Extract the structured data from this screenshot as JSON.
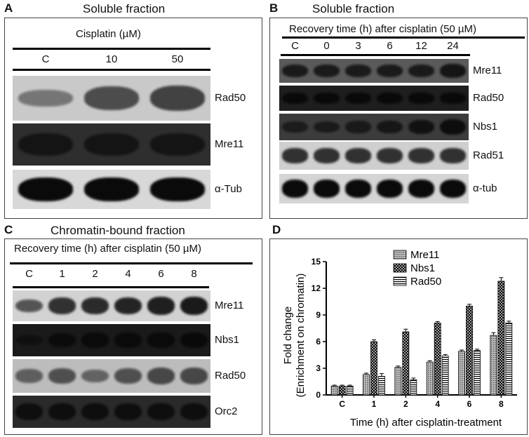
{
  "panelA": {
    "letter": "A",
    "title": "Soluble fraction",
    "treatment": "Cisplatin (µM)",
    "lanes": [
      "C",
      "10",
      "50"
    ],
    "blots": [
      {
        "label": "Rad50",
        "bg": "#c9c9c9",
        "band": "#3a3a3a",
        "intensity": [
          0.35,
          0.8,
          0.9
        ]
      },
      {
        "label": "Mre11",
        "bg": "#2e2e2e",
        "band": "#111111",
        "intensity": [
          0.8,
          0.8,
          0.8
        ]
      },
      {
        "label": "α-Tub",
        "bg": "#d8d8d8",
        "band": "#0a0a0a",
        "intensity": [
          1,
          1,
          1
        ]
      }
    ]
  },
  "panelB": {
    "letter": "B",
    "title": "Soluble fraction",
    "treatment": "Recovery time (h) after cisplatin (50 µM)",
    "lanes": [
      "C",
      "0",
      "3",
      "6",
      "12",
      "24"
    ],
    "blots": [
      {
        "label": "Mre11",
        "bg": "#5a5a5a",
        "band": "#111111",
        "intensity": [
          0.8,
          0.8,
          0.8,
          0.8,
          0.8,
          0.9
        ]
      },
      {
        "label": "Rad50",
        "bg": "#1e1e1e",
        "band": "#000000",
        "intensity": [
          0.5,
          0.5,
          0.5,
          0.5,
          0.5,
          0.5
        ]
      },
      {
        "label": "Nbs1",
        "bg": "#3c3c3c",
        "band": "#0d0d0d",
        "intensity": [
          0.5,
          0.55,
          0.6,
          0.7,
          0.85,
          1
        ]
      },
      {
        "label": "Rad51",
        "bg": "#cfcfcf",
        "band": "#1a1a1a",
        "intensity": [
          0.8,
          0.8,
          0.8,
          0.8,
          0.8,
          0.8
        ]
      },
      {
        "label": "α-tub",
        "bg": "#d5d5d5",
        "band": "#0a0a0a",
        "intensity": [
          1,
          1,
          1,
          1,
          1,
          1
        ]
      }
    ]
  },
  "panelC": {
    "letter": "C",
    "title": "Chromatin-bound fraction",
    "treatment": "Recovery time (h) after cisplatin (50 µM)",
    "lanes": [
      "C",
      "1",
      "2",
      "4",
      "6",
      "8"
    ],
    "blots": [
      {
        "label": "Mre11",
        "bg": "#d2d2d2",
        "band": "#1a1a1a",
        "intensity": [
          0.5,
          0.8,
          0.85,
          0.9,
          0.95,
          1
        ]
      },
      {
        "label": "Nbs1",
        "bg": "#1a1a1a",
        "band": "#050505",
        "intensity": [
          0.2,
          0.5,
          0.6,
          0.6,
          0.6,
          0.65
        ]
      },
      {
        "label": "Rad50",
        "bg": "#bcbcbc",
        "band": "#2a2a2a",
        "intensity": [
          0.45,
          0.6,
          0.4,
          0.6,
          0.7,
          0.7
        ]
      },
      {
        "label": "Orc2",
        "bg": "#2a2a2a",
        "band": "#0a0a0a",
        "intensity": [
          0.8,
          0.8,
          0.8,
          0.8,
          0.8,
          0.8
        ]
      }
    ]
  },
  "panelD": {
    "letter": "D",
    "chart_data": {
      "type": "bar",
      "categories": [
        "C",
        "1",
        "2",
        "4",
        "6",
        "8"
      ],
      "series": [
        {
          "name": "Mre11",
          "values": [
            1.0,
            2.3,
            3.1,
            3.7,
            4.9,
            6.7
          ],
          "errors": [
            0.1,
            0.15,
            0.15,
            0.15,
            0.15,
            0.3
          ],
          "fill": "#9a9a9a"
        },
        {
          "name": "Nbs1",
          "values": [
            1.0,
            6.0,
            7.1,
            8.1,
            10.0,
            12.8
          ],
          "errors": [
            0.1,
            0.2,
            0.3,
            0.15,
            0.2,
            0.4
          ],
          "fill": "#3a3a3a"
        },
        {
          "name": "Rad50",
          "values": [
            1.0,
            2.1,
            1.7,
            4.4,
            5.0,
            8.1
          ],
          "errors": [
            0.1,
            0.3,
            0.2,
            0.15,
            0.15,
            0.2
          ],
          "fill": "#ffffff"
        }
      ],
      "ylabel_line1": "Fold change",
      "ylabel_line2": "(Enrichment on chromatin)",
      "xlabel": "Time (h) after cisplatin-treatment",
      "ylim": [
        0,
        15
      ],
      "yticks": [
        "0",
        "3",
        "6",
        "9",
        "12",
        "15"
      ],
      "legend_position": "top-center"
    }
  }
}
